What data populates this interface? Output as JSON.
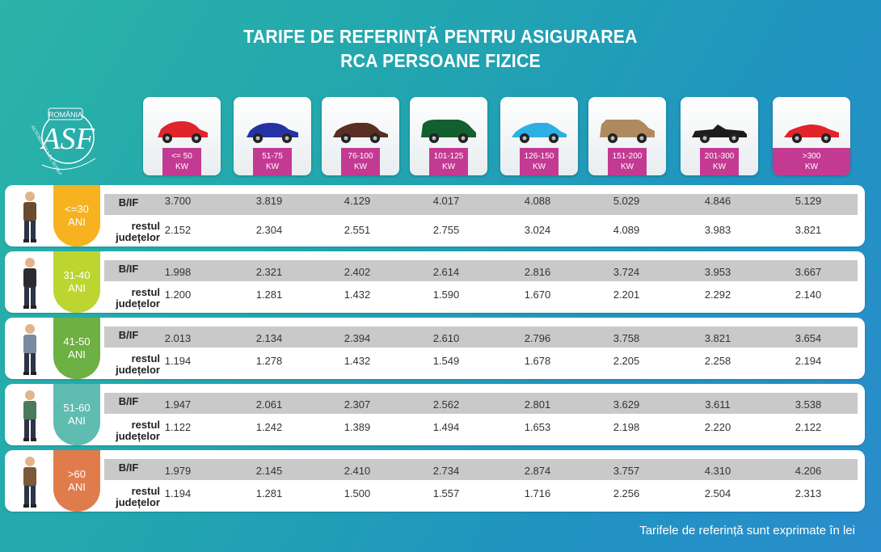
{
  "title": {
    "line1": "TARIFE DE REFERINȚĂ PENTRU ASIGURAREA",
    "line2": "RCA PERSOANE FIZICE"
  },
  "logo": {
    "top_text": "ROMÂNIA",
    "side_text": "AUTORITATEA DE SUPRAVEGHERE FINANCIARĂ"
  },
  "cars": [
    {
      "kw": "<= 50",
      "unit": "KW",
      "color": "#e0242c"
    },
    {
      "kw": "51-75",
      "unit": "KW",
      "color": "#2532a3"
    },
    {
      "kw": "76-100",
      "unit": "KW",
      "color": "#5a2e22"
    },
    {
      "kw": "101-125",
      "unit": "KW",
      "color": "#12602d"
    },
    {
      "kw": "126-150",
      "unit": "KW",
      "color": "#2cb0e4"
    },
    {
      "kw": "151-200",
      "unit": "KW",
      "color": "#b08a5f"
    },
    {
      "kw": "201-300",
      "unit": "KW",
      "color": "#1c1c1c"
    },
    {
      "kw": ">300",
      "unit": "KW",
      "color": "#e3232a"
    }
  ],
  "labels": {
    "bif": "B/IF",
    "rest1": "restul",
    "rest2": "județelor"
  },
  "groups": [
    {
      "age1": "<=30",
      "age2": "ANI",
      "color": "#f6b21f",
      "bif": [
        "3.700",
        "3.819",
        "4.129",
        "4.017",
        "4.088",
        "5.029",
        "4.846",
        "5.129"
      ],
      "rest": [
        "2.152",
        "2.304",
        "2.551",
        "2.755",
        "3.024",
        "4.089",
        "3.983",
        "3.821"
      ]
    },
    {
      "age1": "31-40",
      "age2": "ANI",
      "color": "#bcd531",
      "bif": [
        "1.998",
        "2.321",
        "2.402",
        "2.614",
        "2.816",
        "3.724",
        "3.953",
        "3.667"
      ],
      "rest": [
        "1.200",
        "1.281",
        "1.432",
        "1.590",
        "1.670",
        "2.201",
        "2.292",
        "2.140"
      ]
    },
    {
      "age1": "41-50",
      "age2": "ANI",
      "color": "#6db043",
      "bif": [
        "2.013",
        "2.134",
        "2.394",
        "2.610",
        "2.796",
        "3.758",
        "3.821",
        "3.654"
      ],
      "rest": [
        "1.194",
        "1.278",
        "1.432",
        "1.549",
        "1.678",
        "2.205",
        "2.258",
        "2.194"
      ]
    },
    {
      "age1": "51-60",
      "age2": "ANI",
      "color": "#5fbcb0",
      "bif": [
        "1.947",
        "2.061",
        "2.307",
        "2.562",
        "2.801",
        "3.629",
        "3.611",
        "3.538"
      ],
      "rest": [
        "1.122",
        "1.242",
        "1.389",
        "1.494",
        "1.653",
        "2.198",
        "2.220",
        "2.122"
      ]
    },
    {
      "age1": ">60",
      "age2": "ANI",
      "color": "#e07b4c",
      "bif": [
        "1.979",
        "2.145",
        "2.410",
        "2.734",
        "2.874",
        "3.757",
        "4.310",
        "4.206"
      ],
      "rest": [
        "1.194",
        "1.281",
        "1.500",
        "1.557",
        "1.716",
        "2.256",
        "2.504",
        "2.313"
      ]
    }
  ],
  "footer": "Tarifele de referință sunt exprimate în lei"
}
